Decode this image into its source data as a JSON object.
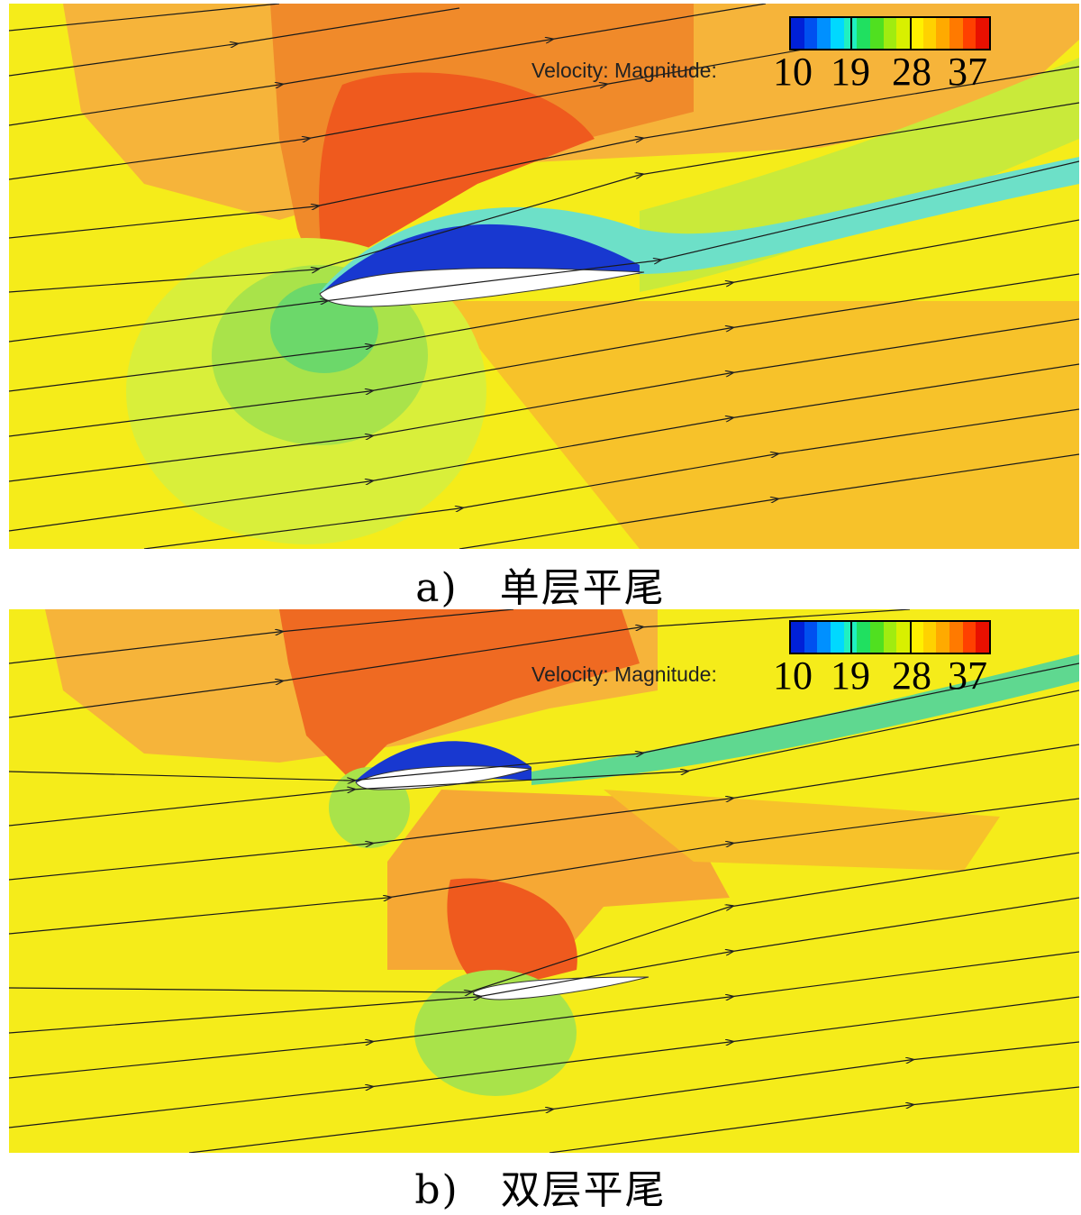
{
  "legend": {
    "label": "Velocity: Magnitude:",
    "ticks": [
      "10",
      "19",
      "28",
      "37"
    ],
    "colors": [
      "#0020d8",
      "#0050f0",
      "#0090ff",
      "#00d8ff",
      "#20f0c0",
      "#20e060",
      "#50e020",
      "#a0ec10",
      "#d8f000",
      "#fff000",
      "#ffd200",
      "#ffaa00",
      "#ff7a00",
      "#ff4000",
      "#e81000"
    ]
  },
  "panels": [
    {
      "caption": "a)　单层平尾"
    },
    {
      "caption": "b)　双层平尾"
    }
  ]
}
